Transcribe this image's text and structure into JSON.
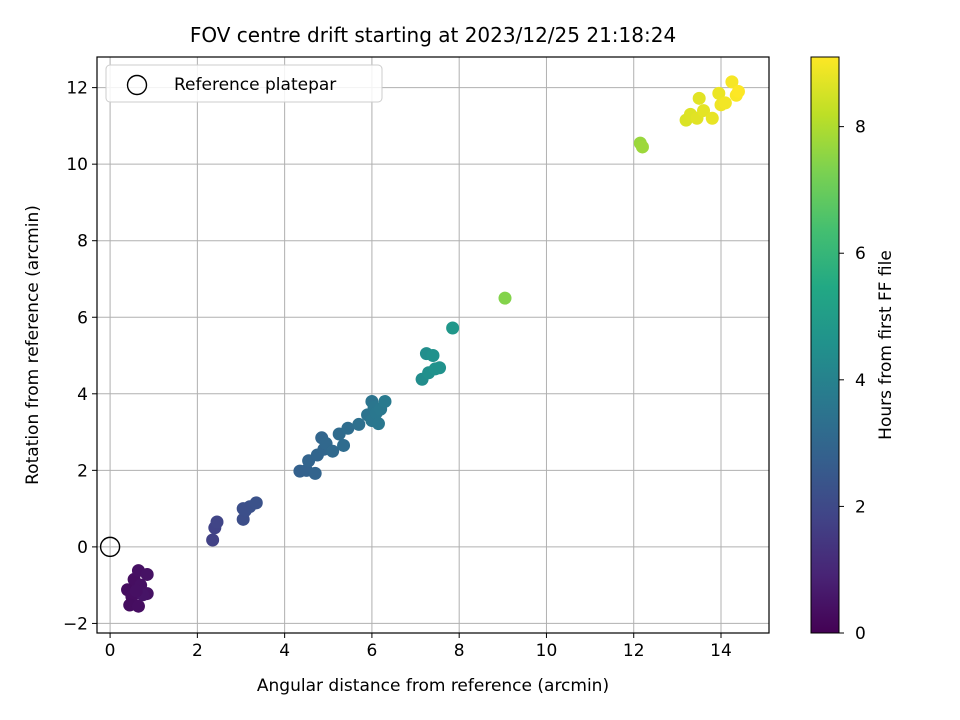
{
  "chart_data": {
    "type": "scatter",
    "title": "FOV centre drift starting at 2023/12/25 21:18:24",
    "xlabel": "Angular distance from reference (arcmin)",
    "ylabel": "Rotation from reference (arcmin)",
    "xlim": [
      -0.3,
      15.1
    ],
    "ylim": [
      -2.25,
      12.8
    ],
    "xticks": [
      0,
      2,
      4,
      6,
      8,
      10,
      12,
      14
    ],
    "yticks": [
      -2,
      0,
      2,
      4,
      6,
      8,
      10,
      12
    ],
    "grid": true,
    "legend": {
      "position": "top-left",
      "entries": [
        "Reference platepar"
      ]
    },
    "reference_point": {
      "x": 0,
      "y": 0,
      "label": "Reference platepar"
    },
    "colorbar": {
      "label": "Hours from first FF file",
      "range": [
        0,
        9.1
      ],
      "ticks": [
        0,
        2,
        4,
        6,
        8
      ],
      "colormap": "viridis"
    },
    "points": [
      {
        "x": 0.4,
        "y": -1.12,
        "h": 0.3
      },
      {
        "x": 0.55,
        "y": -0.85,
        "h": 0.35
      },
      {
        "x": 0.65,
        "y": -0.62,
        "h": 0.4
      },
      {
        "x": 0.85,
        "y": -0.72,
        "h": 0.45
      },
      {
        "x": 0.7,
        "y": -1.0,
        "h": 0.4
      },
      {
        "x": 0.5,
        "y": -1.3,
        "h": 0.35
      },
      {
        "x": 0.45,
        "y": -1.52,
        "h": 0.3
      },
      {
        "x": 0.65,
        "y": -1.55,
        "h": 0.35
      },
      {
        "x": 0.85,
        "y": -1.22,
        "h": 0.45
      },
      {
        "x": 0.75,
        "y": -1.25,
        "h": 0.5
      },
      {
        "x": 0.6,
        "y": -1.15,
        "h": 0.4
      },
      {
        "x": 2.35,
        "y": 0.18,
        "h": 1.75
      },
      {
        "x": 2.4,
        "y": 0.5,
        "h": 1.8
      },
      {
        "x": 2.45,
        "y": 0.65,
        "h": 1.85
      },
      {
        "x": 3.05,
        "y": 0.72,
        "h": 2.15
      },
      {
        "x": 3.1,
        "y": 0.95,
        "h": 2.2
      },
      {
        "x": 3.2,
        "y": 1.05,
        "h": 2.25
      },
      {
        "x": 3.35,
        "y": 1.15,
        "h": 2.3
      },
      {
        "x": 3.05,
        "y": 1.0,
        "h": 2.2
      },
      {
        "x": 4.35,
        "y": 1.98,
        "h": 2.8
      },
      {
        "x": 4.5,
        "y": 2.0,
        "h": 2.85
      },
      {
        "x": 4.55,
        "y": 2.25,
        "h": 2.9
      },
      {
        "x": 4.7,
        "y": 1.92,
        "h": 2.9
      },
      {
        "x": 4.75,
        "y": 2.4,
        "h": 2.95
      },
      {
        "x": 4.85,
        "y": 2.85,
        "h": 3.0
      },
      {
        "x": 4.9,
        "y": 2.55,
        "h": 3.0
      },
      {
        "x": 4.95,
        "y": 2.7,
        "h": 3.05
      },
      {
        "x": 5.1,
        "y": 2.5,
        "h": 3.1
      },
      {
        "x": 5.25,
        "y": 2.95,
        "h": 3.15
      },
      {
        "x": 5.35,
        "y": 2.65,
        "h": 3.2
      },
      {
        "x": 5.45,
        "y": 3.1,
        "h": 3.25
      },
      {
        "x": 5.7,
        "y": 3.2,
        "h": 3.35
      },
      {
        "x": 5.9,
        "y": 3.45,
        "h": 3.45
      },
      {
        "x": 6.0,
        "y": 3.8,
        "h": 3.5
      },
      {
        "x": 6.05,
        "y": 3.65,
        "h": 3.55
      },
      {
        "x": 6.0,
        "y": 3.3,
        "h": 3.55
      },
      {
        "x": 6.1,
        "y": 3.5,
        "h": 3.6
      },
      {
        "x": 6.15,
        "y": 3.22,
        "h": 3.6
      },
      {
        "x": 6.2,
        "y": 3.6,
        "h": 3.65
      },
      {
        "x": 6.3,
        "y": 3.8,
        "h": 3.7
      },
      {
        "x": 7.15,
        "y": 4.38,
        "h": 4.4
      },
      {
        "x": 7.25,
        "y": 5.05,
        "h": 4.45
      },
      {
        "x": 7.3,
        "y": 4.55,
        "h": 4.5
      },
      {
        "x": 7.4,
        "y": 5.0,
        "h": 4.55
      },
      {
        "x": 7.45,
        "y": 4.65,
        "h": 4.6
      },
      {
        "x": 7.55,
        "y": 4.68,
        "h": 4.6
      },
      {
        "x": 7.85,
        "y": 5.72,
        "h": 4.8
      },
      {
        "x": 9.05,
        "y": 6.5,
        "h": 7.4
      },
      {
        "x": 12.15,
        "y": 10.55,
        "h": 7.7
      },
      {
        "x": 12.2,
        "y": 10.45,
        "h": 7.75
      },
      {
        "x": 13.2,
        "y": 11.15,
        "h": 8.6
      },
      {
        "x": 13.3,
        "y": 11.3,
        "h": 8.65
      },
      {
        "x": 13.5,
        "y": 11.72,
        "h": 8.7
      },
      {
        "x": 13.45,
        "y": 11.2,
        "h": 8.7
      },
      {
        "x": 13.6,
        "y": 11.4,
        "h": 8.75
      },
      {
        "x": 13.8,
        "y": 11.2,
        "h": 8.8
      },
      {
        "x": 13.95,
        "y": 11.85,
        "h": 8.85
      },
      {
        "x": 14.0,
        "y": 11.55,
        "h": 8.9
      },
      {
        "x": 14.1,
        "y": 11.6,
        "h": 8.95
      },
      {
        "x": 14.25,
        "y": 12.15,
        "h": 9.0
      },
      {
        "x": 14.35,
        "y": 11.8,
        "h": 9.05
      },
      {
        "x": 14.4,
        "y": 11.9,
        "h": 9.1
      }
    ]
  }
}
